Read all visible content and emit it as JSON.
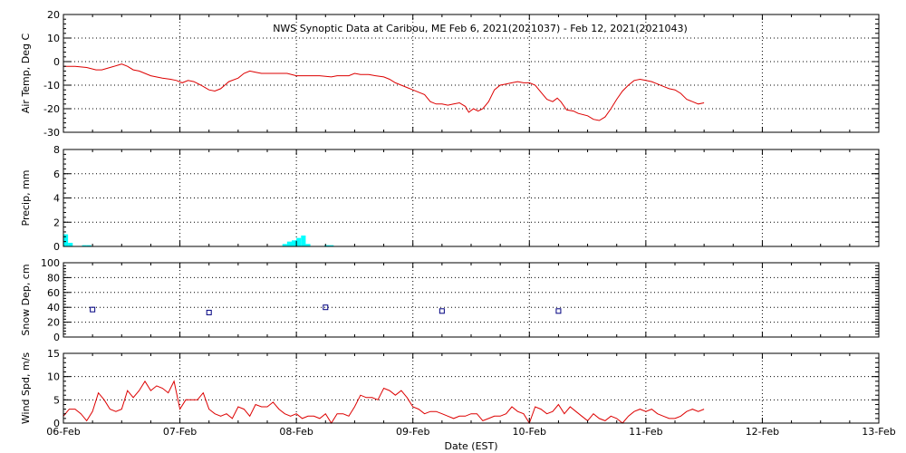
{
  "chart_data": {
    "type": "line",
    "title": "NWS Synoptic Data at Caribou, ME   Feb  6, 2021(2021037) - Feb 12, 2021(2021043)",
    "xlabel": "Date (EST)",
    "x_range_days": [
      0,
      7
    ],
    "x_tick_labels": [
      "06-Feb",
      "07-Feb",
      "08-Feb",
      "09-Feb",
      "10-Feb",
      "11-Feb",
      "12-Feb",
      "13-Feb"
    ],
    "colors": {
      "temp": "#dd0000",
      "precip": "#00ffff",
      "snow": "#000080",
      "wind": "#dd0000"
    },
    "panels": [
      {
        "id": "temp",
        "ylabel": "Air Temp, Deg C",
        "ylim": [
          -30,
          20
        ],
        "yticks": [
          -30,
          -20,
          -10,
          0,
          10,
          20
        ],
        "y_tick_labels": [
          "-30",
          "-20",
          "-10",
          "0",
          "10",
          "20"
        ],
        "kind": "line",
        "series": [
          {
            "points": [
              [
                0,
                -2
              ],
              [
                0.1,
                -2
              ],
              [
                0.2,
                -2.5
              ],
              [
                0.28,
                -3.5
              ],
              [
                0.33,
                -3.5
              ],
              [
                0.4,
                -2.5
              ],
              [
                0.47,
                -1.5
              ],
              [
                0.5,
                -1
              ],
              [
                0.55,
                -2
              ],
              [
                0.6,
                -3.5
              ],
              [
                0.65,
                -4
              ],
              [
                0.75,
                -6
              ],
              [
                0.85,
                -7
              ],
              [
                0.92,
                -7.5
              ],
              [
                0.97,
                -8
              ],
              [
                1.02,
                -9
              ],
              [
                1.07,
                -8
              ],
              [
                1.12,
                -8.5
              ],
              [
                1.18,
                -10
              ],
              [
                1.25,
                -12
              ],
              [
                1.3,
                -12.5
              ],
              [
                1.35,
                -11.5
              ],
              [
                1.42,
                -8.5
              ],
              [
                1.5,
                -7
              ],
              [
                1.55,
                -5
              ],
              [
                1.6,
                -4
              ],
              [
                1.65,
                -4.5
              ],
              [
                1.7,
                -5
              ],
              [
                1.8,
                -5
              ],
              [
                1.92,
                -5
              ],
              [
                2.0,
                -6
              ],
              [
                2.1,
                -6
              ],
              [
                2.2,
                -6
              ],
              [
                2.3,
                -6.5
              ],
              [
                2.35,
                -6
              ],
              [
                2.45,
                -6
              ],
              [
                2.5,
                -5
              ],
              [
                2.55,
                -5.5
              ],
              [
                2.62,
                -5.5
              ],
              [
                2.68,
                -6
              ],
              [
                2.75,
                -6.5
              ],
              [
                2.8,
                -7.5
              ],
              [
                2.85,
                -9
              ],
              [
                2.9,
                -10
              ],
              [
                2.95,
                -11
              ],
              [
                3.0,
                -12
              ],
              [
                3.05,
                -13
              ],
              [
                3.1,
                -14
              ],
              [
                3.15,
                -17
              ],
              [
                3.2,
                -18
              ],
              [
                3.25,
                -18
              ],
              [
                3.3,
                -18.5
              ],
              [
                3.35,
                -18
              ],
              [
                3.4,
                -17.5
              ],
              [
                3.45,
                -19
              ],
              [
                3.48,
                -21.5
              ],
              [
                3.52,
                -20
              ],
              [
                3.56,
                -21
              ],
              [
                3.6,
                -20
              ],
              [
                3.65,
                -17
              ],
              [
                3.7,
                -12
              ],
              [
                3.75,
                -10
              ],
              [
                3.8,
                -9.5
              ],
              [
                3.85,
                -9
              ],
              [
                3.9,
                -8.5
              ],
              [
                3.95,
                -9
              ],
              [
                4.0,
                -9
              ],
              [
                4.05,
                -10
              ],
              [
                4.1,
                -13
              ],
              [
                4.15,
                -16
              ],
              [
                4.2,
                -17
              ],
              [
                4.24,
                -15.5
              ],
              [
                4.27,
                -17
              ],
              [
                4.32,
                -20.5
              ],
              [
                4.38,
                -21
              ],
              [
                4.42,
                -22
              ],
              [
                4.5,
                -23
              ],
              [
                4.55,
                -24.5
              ],
              [
                4.6,
                -25
              ],
              [
                4.65,
                -23.5
              ],
              [
                4.7,
                -20
              ],
              [
                4.75,
                -16
              ],
              [
                4.8,
                -12.5
              ],
              [
                4.85,
                -10
              ],
              [
                4.9,
                -8
              ],
              [
                4.95,
                -7.5
              ],
              [
                5.0,
                -8
              ],
              [
                5.05,
                -8.5
              ],
              [
                5.1,
                -9.5
              ],
              [
                5.15,
                -10.5
              ],
              [
                5.2,
                -11.5
              ],
              [
                5.25,
                -12
              ],
              [
                5.3,
                -13.5
              ],
              [
                5.35,
                -16
              ],
              [
                5.4,
                -17
              ],
              [
                5.45,
                -18
              ],
              [
                5.5,
                -17.5
              ]
            ]
          }
        ]
      },
      {
        "id": "precip",
        "ylabel": "Precip, mm",
        "ylim": [
          0,
          8
        ],
        "yticks": [
          0,
          2,
          4,
          6,
          8
        ],
        "y_tick_labels": [
          "0",
          "2",
          "4",
          "6",
          "8"
        ],
        "kind": "bar",
        "bar_width_days": 0.04,
        "bars": [
          [
            0.0,
            1.0
          ],
          [
            0.04,
            0.3
          ],
          [
            0.16,
            0.1
          ],
          [
            0.2,
            0.1
          ],
          [
            1.88,
            0.2
          ],
          [
            1.92,
            0.4
          ],
          [
            1.96,
            0.5
          ],
          [
            2.0,
            0.7
          ],
          [
            2.04,
            0.9
          ],
          [
            2.08,
            0.2
          ],
          [
            2.24,
            0.1
          ],
          [
            2.28,
            0.1
          ]
        ]
      },
      {
        "id": "snow",
        "ylabel": "Snow Dep, cm",
        "ylim": [
          0,
          100
        ],
        "yticks": [
          0,
          20,
          40,
          60,
          80,
          100
        ],
        "y_tick_labels": [
          "0",
          "20",
          "40",
          "60",
          "80",
          "100"
        ],
        "kind": "scatter",
        "points": [
          [
            0.25,
            37
          ],
          [
            1.25,
            33
          ],
          [
            2.25,
            40
          ],
          [
            3.25,
            35
          ],
          [
            4.25,
            35
          ]
        ]
      },
      {
        "id": "wind",
        "ylabel": "Wind Spd, m/s",
        "ylim": [
          0,
          15
        ],
        "yticks": [
          0,
          5,
          10,
          15
        ],
        "y_tick_labels": [
          "0",
          "5",
          "10",
          "15"
        ],
        "kind": "line",
        "series": [
          {
            "points": [
              [
                0,
                1.5
              ],
              [
                0.05,
                3
              ],
              [
                0.1,
                3
              ],
              [
                0.15,
                2
              ],
              [
                0.2,
                0.5
              ],
              [
                0.25,
                2.5
              ],
              [
                0.3,
                6.5
              ],
              [
                0.35,
                5
              ],
              [
                0.4,
                3
              ],
              [
                0.45,
                2.5
              ],
              [
                0.5,
                3
              ],
              [
                0.55,
                7
              ],
              [
                0.6,
                5.5
              ],
              [
                0.65,
                7
              ],
              [
                0.7,
                9
              ],
              [
                0.75,
                7
              ],
              [
                0.8,
                8
              ],
              [
                0.85,
                7.5
              ],
              [
                0.9,
                6.5
              ],
              [
                0.95,
                9
              ],
              [
                1.0,
                3
              ],
              [
                1.05,
                5
              ],
              [
                1.1,
                5
              ],
              [
                1.15,
                5
              ],
              [
                1.2,
                6.5
              ],
              [
                1.25,
                3
              ],
              [
                1.3,
                2
              ],
              [
                1.35,
                1.5
              ],
              [
                1.4,
                2
              ],
              [
                1.45,
                1
              ],
              [
                1.5,
                3.5
              ],
              [
                1.55,
                3
              ],
              [
                1.6,
                1.5
              ],
              [
                1.65,
                4
              ],
              [
                1.7,
                3.5
              ],
              [
                1.75,
                3.5
              ],
              [
                1.8,
                4.5
              ],
              [
                1.85,
                3
              ],
              [
                1.9,
                2
              ],
              [
                1.95,
                1.5
              ],
              [
                2.0,
                2
              ],
              [
                2.05,
                1
              ],
              [
                2.1,
                1.5
              ],
              [
                2.15,
                1.5
              ],
              [
                2.2,
                1
              ],
              [
                2.25,
                2
              ],
              [
                2.3,
                0
              ],
              [
                2.35,
                2
              ],
              [
                2.4,
                2
              ],
              [
                2.45,
                1.5
              ],
              [
                2.5,
                3.5
              ],
              [
                2.55,
                6
              ],
              [
                2.6,
                5.5
              ],
              [
                2.65,
                5.5
              ],
              [
                2.7,
                5
              ],
              [
                2.75,
                7.5
              ],
              [
                2.8,
                7
              ],
              [
                2.85,
                6
              ],
              [
                2.9,
                7
              ],
              [
                2.95,
                5.5
              ],
              [
                3.0,
                3.5
              ],
              [
                3.05,
                3
              ],
              [
                3.1,
                2
              ],
              [
                3.15,
                2.5
              ],
              [
                3.2,
                2.5
              ],
              [
                3.25,
                2
              ],
              [
                3.3,
                1.5
              ],
              [
                3.35,
                1
              ],
              [
                3.4,
                1.5
              ],
              [
                3.45,
                1.5
              ],
              [
                3.5,
                2
              ],
              [
                3.55,
                2
              ],
              [
                3.6,
                0.5
              ],
              [
                3.65,
                1
              ],
              [
                3.7,
                1.5
              ],
              [
                3.75,
                1.5
              ],
              [
                3.8,
                2
              ],
              [
                3.85,
                3.5
              ],
              [
                3.9,
                2.5
              ],
              [
                3.95,
                2
              ],
              [
                4.0,
                0
              ],
              [
                4.05,
                3.5
              ],
              [
                4.1,
                3
              ],
              [
                4.15,
                2
              ],
              [
                4.2,
                2.5
              ],
              [
                4.25,
                4
              ],
              [
                4.3,
                2
              ],
              [
                4.35,
                3.5
              ],
              [
                4.4,
                2.5
              ],
              [
                4.45,
                1.5
              ],
              [
                4.5,
                0.5
              ],
              [
                4.55,
                2
              ],
              [
                4.6,
                1
              ],
              [
                4.65,
                0.5
              ],
              [
                4.7,
                1.5
              ],
              [
                4.75,
                1
              ],
              [
                4.8,
                0
              ],
              [
                4.85,
                1.5
              ],
              [
                4.9,
                2.5
              ],
              [
                4.95,
                3
              ],
              [
                5.0,
                2.5
              ],
              [
                5.05,
                3
              ],
              [
                5.1,
                2
              ],
              [
                5.15,
                1.5
              ],
              [
                5.2,
                1
              ],
              [
                5.25,
                1
              ],
              [
                5.3,
                1.5
              ],
              [
                5.35,
                2.5
              ],
              [
                5.4,
                3
              ],
              [
                5.45,
                2.5
              ],
              [
                5.5,
                3
              ]
            ]
          }
        ]
      }
    ]
  }
}
